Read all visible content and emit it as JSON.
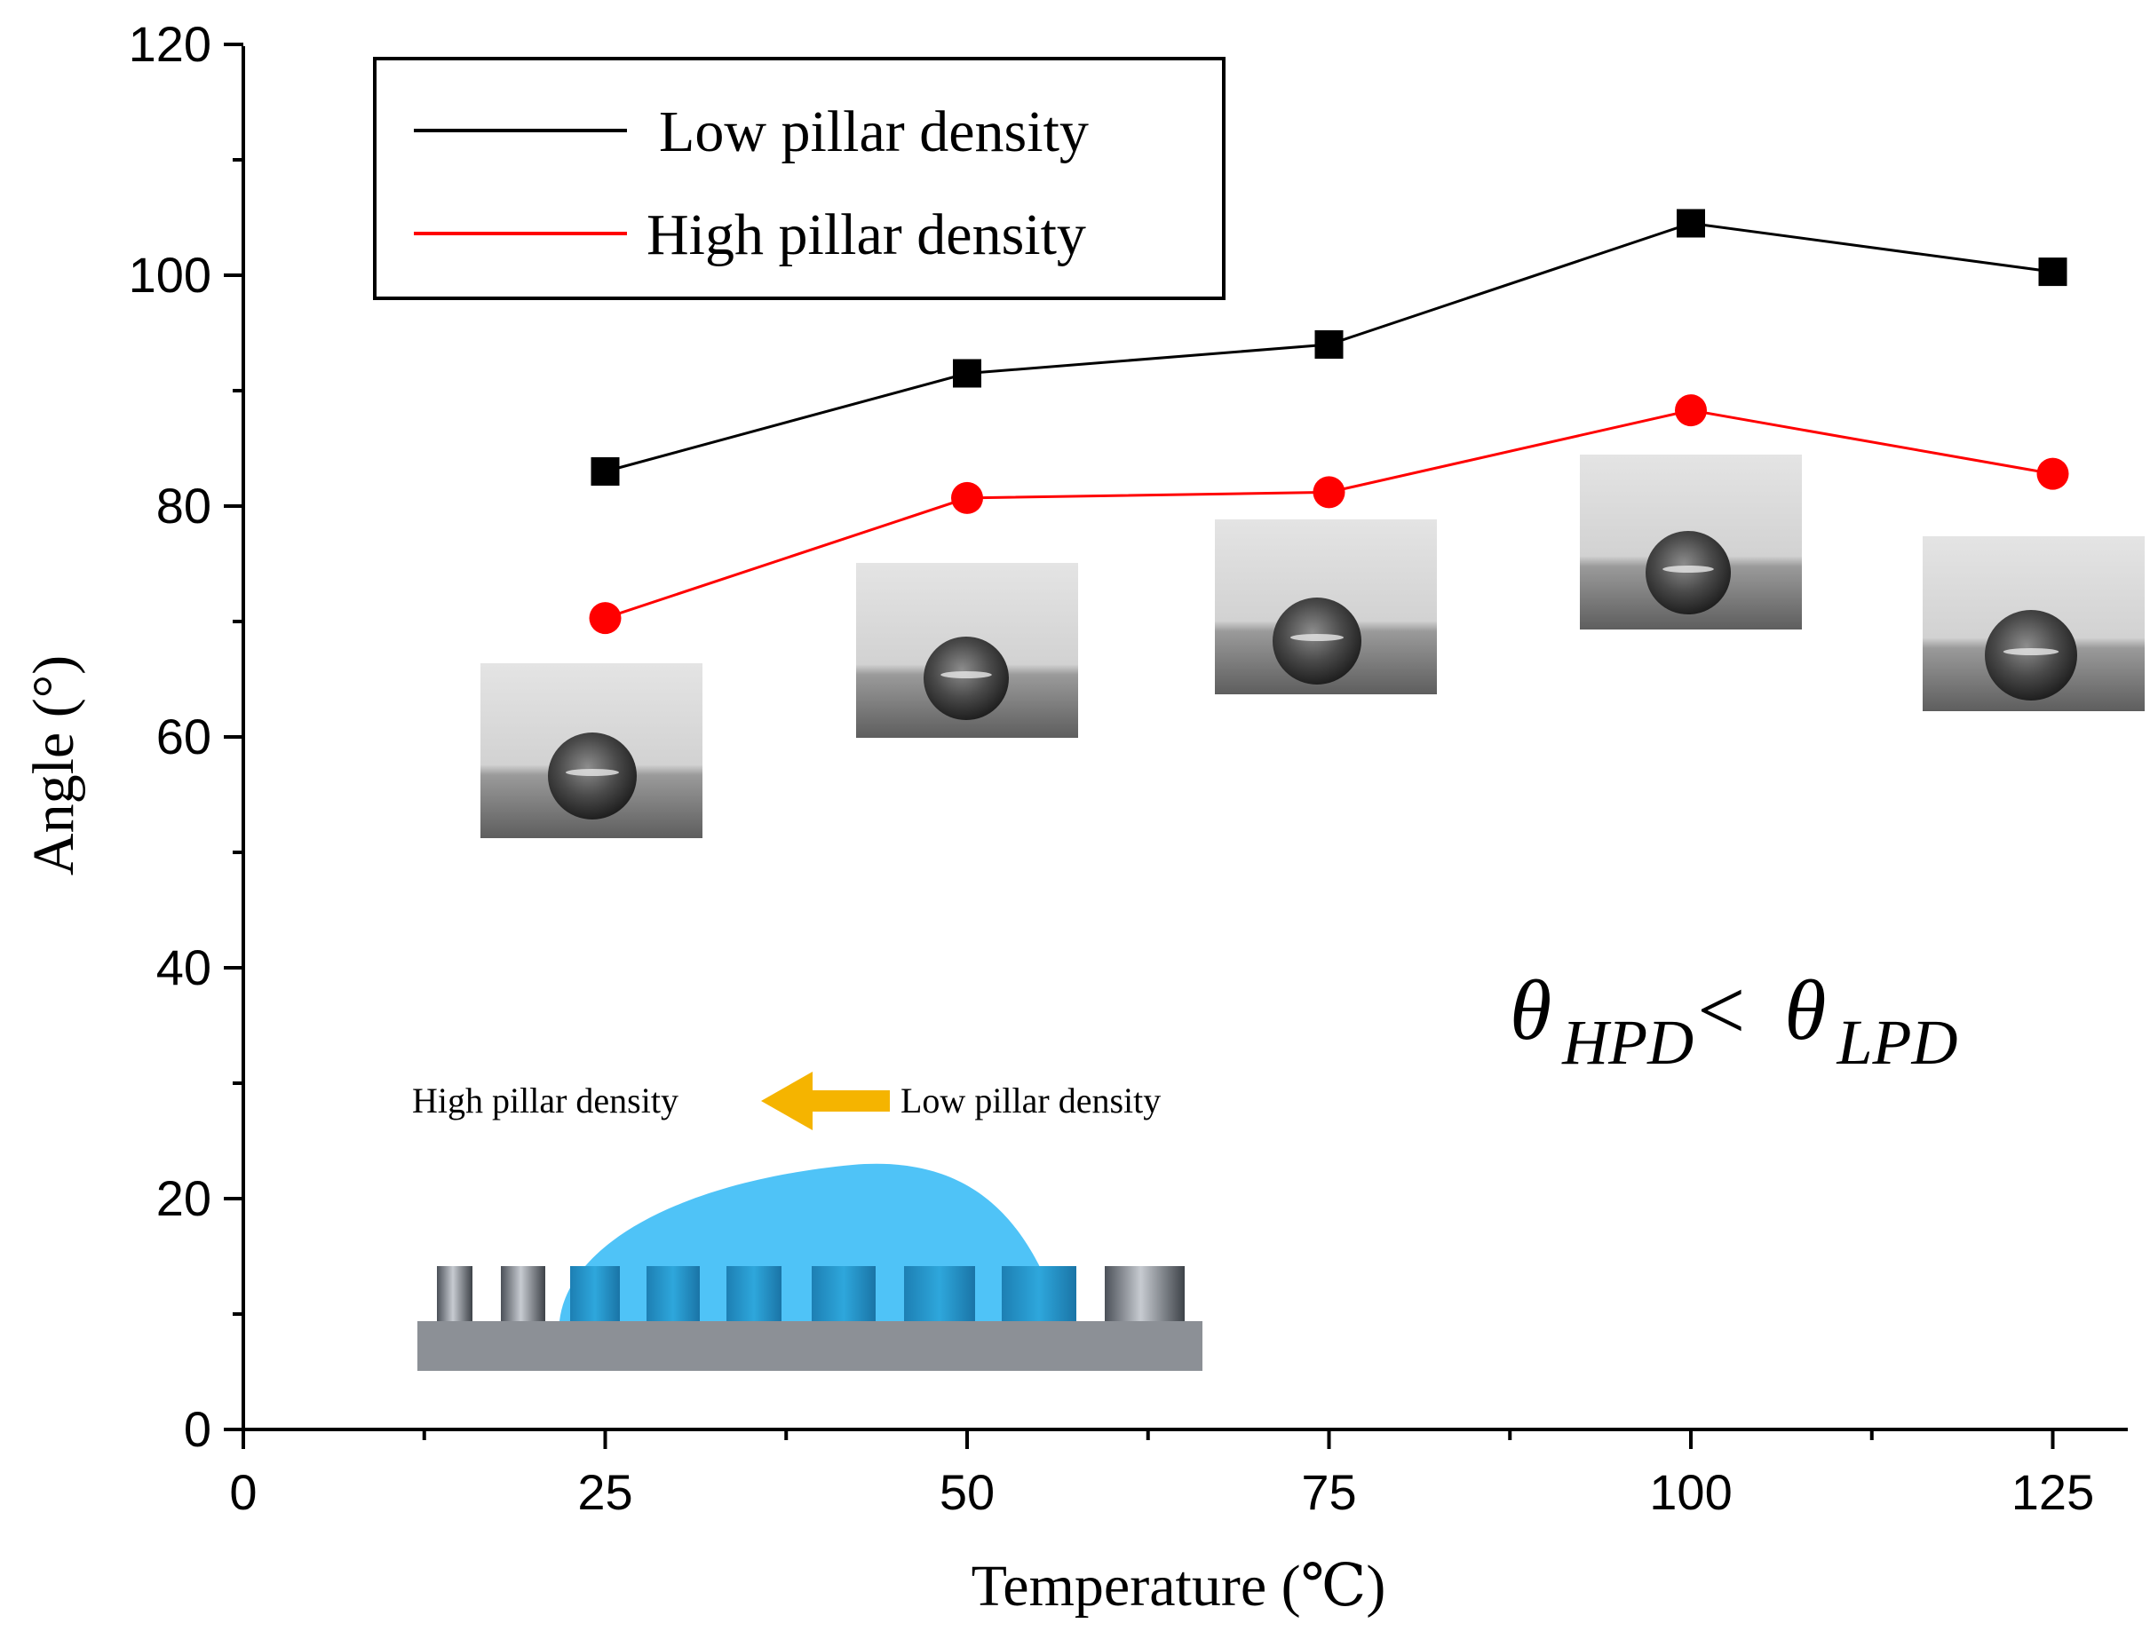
{
  "chart_data": {
    "type": "line",
    "title": "",
    "xlabel": "Temperature (℃)",
    "ylabel": "Angle (°)",
    "xlim": [
      0,
      130
    ],
    "ylim": [
      0,
      120
    ],
    "x_ticks": [
      0,
      25,
      50,
      75,
      100,
      125
    ],
    "y_ticks": [
      0,
      20,
      40,
      60,
      80,
      100,
      120
    ],
    "x": [
      25,
      50,
      75,
      100,
      125
    ],
    "series": [
      {
        "name": "Low pillar density",
        "color": "#000000",
        "marker": "square",
        "values": [
          83,
          91.5,
          94,
          104.5,
          100.3
        ]
      },
      {
        "name": "High pillar density",
        "color": "#ff0000",
        "marker": "circle",
        "values": [
          70.3,
          80.7,
          81.2,
          88.3,
          82.8
        ]
      }
    ],
    "legend": "top-left",
    "annotation": {
      "symbol": "θ",
      "sub_left": "HPD",
      "relation": "<",
      "sub_right": "LPD"
    },
    "inset": {
      "left_label": "High pillar density",
      "right_label": "Low pillar density",
      "arrow_color": "#f5b400",
      "droplet_color": "#4fc3f7"
    }
  }
}
